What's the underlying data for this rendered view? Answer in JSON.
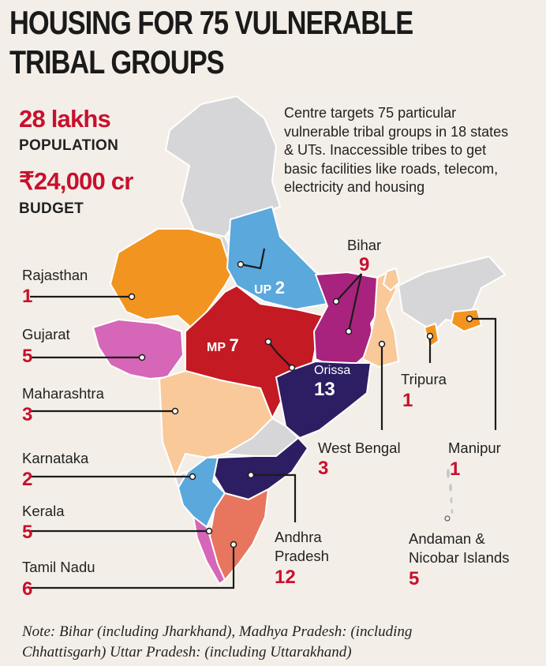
{
  "title_line1": "HOUSING FOR 75 VULNERABLE",
  "title_line2": "TRIBAL GROUPS",
  "population_value": "28 lakhs",
  "population_label": "POPULATION",
  "budget_value": "₹24,000 cr",
  "budget_label": "BUDGET",
  "description": "Centre targets 75 particular vulnerable tribal groups in 18 states & UTs. Inaccessible tribes to get basic facilities like roads, telecom, electricity and housing",
  "states": {
    "rajasthan": {
      "name": "Rajasthan",
      "count": "1"
    },
    "gujarat": {
      "name": "Gujarat",
      "count": "5"
    },
    "maharashtra": {
      "name": "Maharashtra",
      "count": "3"
    },
    "karnataka": {
      "name": "Karnataka",
      "count": "2"
    },
    "kerala": {
      "name": "Kerala",
      "count": "5"
    },
    "tamil_nadu": {
      "name": "Tamil Nadu",
      "count": "6"
    },
    "up": {
      "name": "UP",
      "count": "2"
    },
    "mp": {
      "name": "MP",
      "count": "7"
    },
    "bihar": {
      "name": "Bihar",
      "count": "9"
    },
    "orissa": {
      "name": "Orissa",
      "count": "13"
    },
    "tripura": {
      "name": "Tripura",
      "count": "1"
    },
    "west_bengal": {
      "name": "West Bengal",
      "count": "3"
    },
    "manipur": {
      "name": "Manipur",
      "count": "1"
    },
    "andhra_pradesh": {
      "name_line1": "Andhra",
      "name_line2": "Pradesh",
      "count": "12"
    },
    "andaman": {
      "name_line1": "Andaman &",
      "name_line2": "Nicobar Islands",
      "count": "5"
    }
  },
  "note_line1": "Note: Bihar (including Jharkhand), Madhya Pradesh: (including",
  "note_line2": "Chhattisgarh) Uttar Pradesh: (including Uttarakhand)",
  "colors": {
    "red": "#c8102e",
    "other_states": "#d6d6d8",
    "rajasthan": "#f29420",
    "gujarat": "#d566b8",
    "maharashtra": "#f9c99a",
    "up": "#5aa8dc",
    "mp": "#c41a23",
    "bihar": "#a8237d",
    "orissa": "#2d1e63",
    "andhra": "#2d1e63",
    "karnataka": "#5aa8dc",
    "tamil_nadu": "#e8755d"
  }
}
